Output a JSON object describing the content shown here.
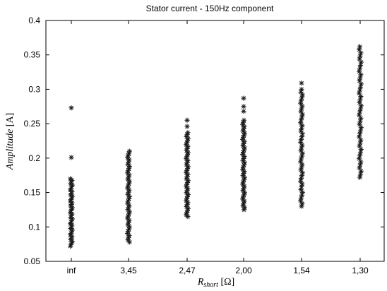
{
  "chart_data": {
    "type": "scatter",
    "title": "Stator current - 150Hz component",
    "xlabel": {
      "main": "R",
      "sub": "short",
      "unit": " [Ω]"
    },
    "ylabel": {
      "main": "Amplitude",
      "unit": " [A]"
    },
    "categories": [
      "inf",
      "3,45",
      "2,47",
      "2,00",
      "1,54",
      "1,30"
    ],
    "yticks": [
      "0.05",
      "0.1",
      "0.15",
      "0.2",
      "0.25",
      "0.3",
      "0.35",
      "0.4"
    ],
    "ylim": [
      0.05,
      0.4
    ],
    "grid": false,
    "marker": "asterisk",
    "series": [
      {
        "category": "inf",
        "range": [
          0.072,
          0.17
        ],
        "outliers": [
          0.273,
          0.201
        ]
      },
      {
        "category": "3,45",
        "range": [
          0.078,
          0.21
        ],
        "outliers": []
      },
      {
        "category": "2,47",
        "range": [
          0.115,
          0.237
        ],
        "outliers": [
          0.255,
          0.246
        ]
      },
      {
        "category": "2,00",
        "range": [
          0.125,
          0.255
        ],
        "outliers": [
          0.287,
          0.275,
          0.268
        ]
      },
      {
        "category": "1,54",
        "range": [
          0.13,
          0.3
        ],
        "outliers": [
          0.309
        ]
      },
      {
        "category": "1,30",
        "range": [
          0.172,
          0.362
        ],
        "outliers": []
      }
    ]
  }
}
